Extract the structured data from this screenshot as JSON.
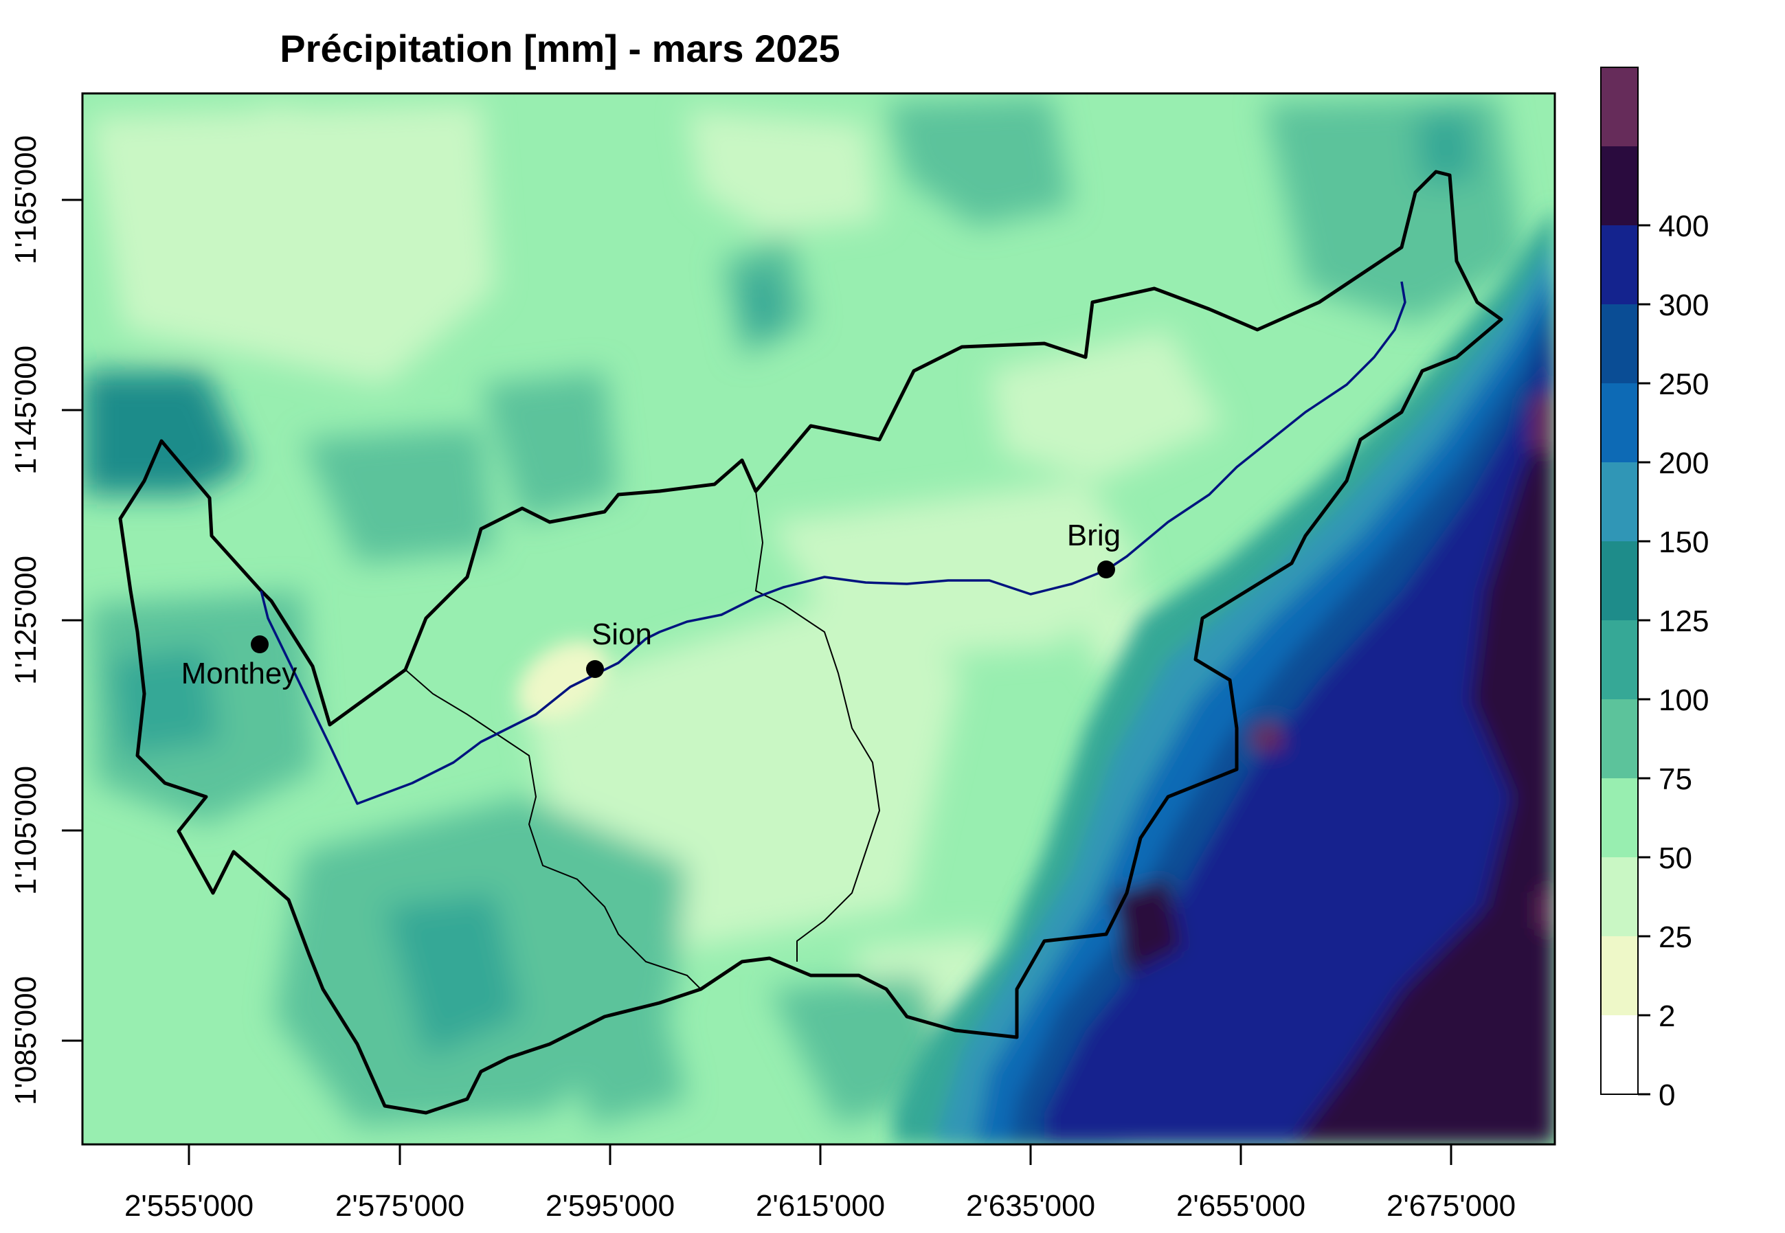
{
  "title": "Précipitation [mm] - mars 2025",
  "map": {
    "x_axis_ticks": [
      "2'555'000",
      "2'575'000",
      "2'595'000",
      "2'615'000",
      "2'635'000",
      "2'655'000",
      "2'675'000"
    ],
    "y_axis_ticks": [
      "1'085'000",
      "1'105'000",
      "1'125'000",
      "1'145'000",
      "1'165'000"
    ],
    "cities": [
      {
        "name": "Monthey"
      },
      {
        "name": "Sion"
      },
      {
        "name": "Brig"
      }
    ]
  },
  "legend": {
    "breaks": [
      "0",
      "2",
      "25",
      "50",
      "75",
      "100",
      "125",
      "150",
      "200",
      "250",
      "300",
      "400"
    ],
    "colors": [
      "#ffffff",
      "#eef8c8",
      "#c9f7c4",
      "#98eeb0",
      "#5cc39b",
      "#36a896",
      "#1e8c8a",
      "#3096b6",
      "#0d6ab5",
      "#0a4d95",
      "#14238e",
      "#2a0b3e",
      "#662c5a"
    ]
  }
}
